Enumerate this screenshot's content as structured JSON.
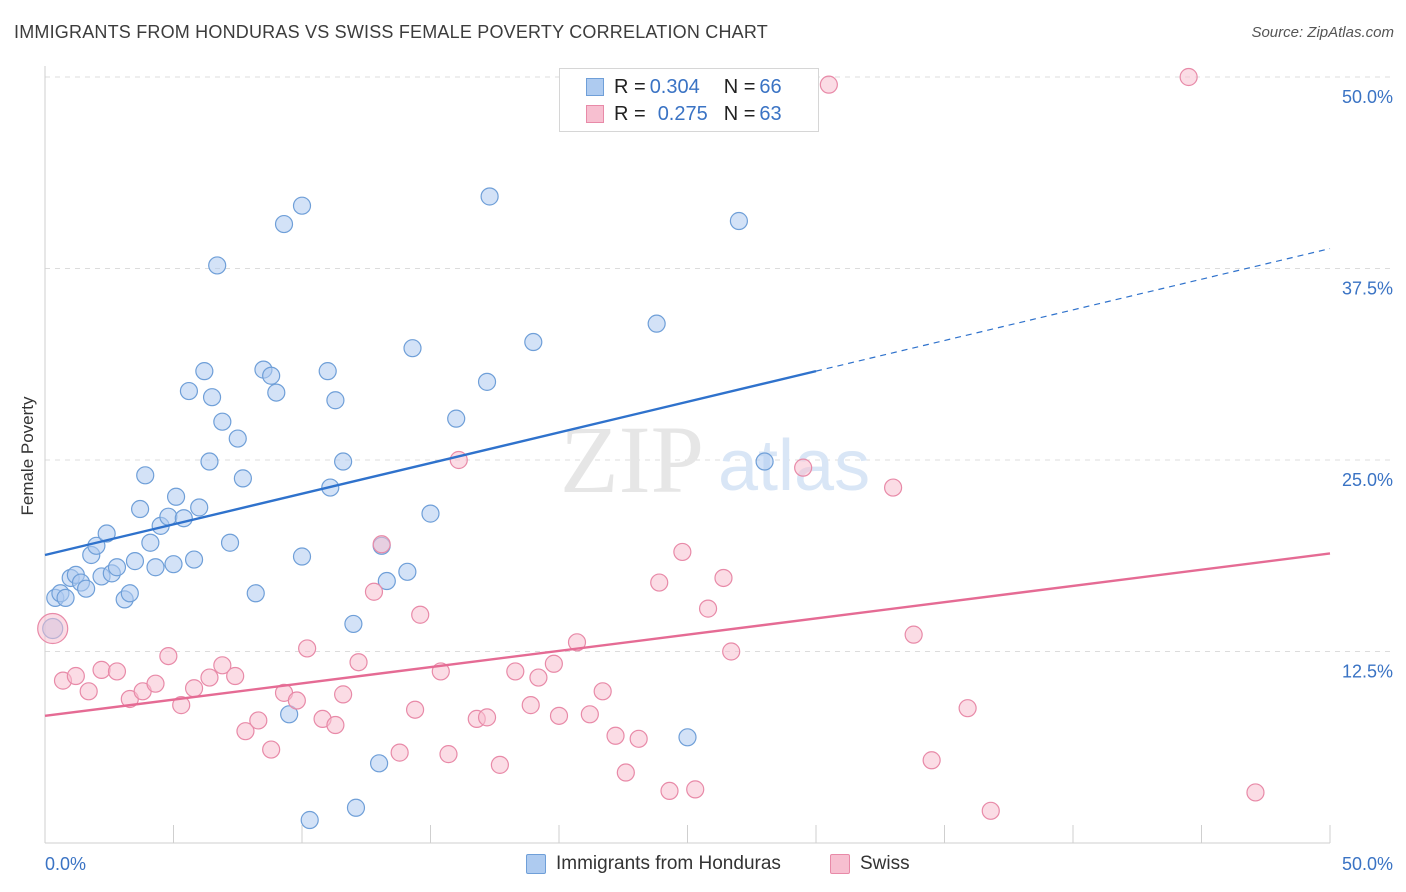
{
  "title": "IMMIGRANTS FROM HONDURAS VS SWISS FEMALE POVERTY CORRELATION CHART",
  "source": "Source: ZipAtlas.com",
  "watermark": {
    "zip": "ZIP",
    "atlas": "atlas"
  },
  "colors": {
    "blue_fill": "#aecbf0",
    "blue_stroke": "#6f9fd8",
    "blue_line": "#2f72cc",
    "pink_fill": "#f7bfd0",
    "pink_stroke": "#e88aa8",
    "pink_line": "#e56b94",
    "grid": "#dcdcdc",
    "axis_label": "#3a73c4"
  },
  "legend_top": [
    {
      "r_label": "R = ",
      "r_value": "0.304",
      "n_label": "N = ",
      "n_value": "66"
    },
    {
      "r_label": "R = ",
      "r_value": "0.275",
      "n_label": "N = ",
      "n_value": "63"
    }
  ],
  "chart_data": {
    "type": "scatter",
    "title": "IMMIGRANTS FROM HONDURAS VS SWISS FEMALE POVERTY CORRELATION CHART",
    "xlabel": "",
    "ylabel": "Female Poverty",
    "xlim": [
      0,
      50
    ],
    "ylim": [
      0,
      50
    ],
    "x_tick_labels": [
      "0.0%",
      "50.0%"
    ],
    "y_tick_values": [
      12.5,
      25.0,
      37.5,
      50.0
    ],
    "y_tick_labels": [
      "12.5%",
      "25.0%",
      "37.5%",
      "50.0%"
    ],
    "grid": true,
    "legend_position": "bottom",
    "series": [
      {
        "name": "Immigrants from Honduras",
        "r": 0.304,
        "n": 66,
        "trend": {
          "x": [
            0,
            30
          ],
          "y": [
            18.8,
            30.8
          ],
          "dashed_to_x": 50,
          "dashed_to_y": 38.8
        },
        "points": [
          [
            0.3,
            14.0
          ],
          [
            0.4,
            16.0
          ],
          [
            0.6,
            16.3
          ],
          [
            0.8,
            16.0
          ],
          [
            1.0,
            17.3
          ],
          [
            1.2,
            17.5
          ],
          [
            1.4,
            17.0
          ],
          [
            1.6,
            16.6
          ],
          [
            1.8,
            18.8
          ],
          [
            2.0,
            19.4
          ],
          [
            2.2,
            17.4
          ],
          [
            2.4,
            20.2
          ],
          [
            2.6,
            17.6
          ],
          [
            2.8,
            18.0
          ],
          [
            3.1,
            15.9
          ],
          [
            3.3,
            16.3
          ],
          [
            3.5,
            18.4
          ],
          [
            3.7,
            21.8
          ],
          [
            3.9,
            24.0
          ],
          [
            4.1,
            19.6
          ],
          [
            4.3,
            18.0
          ],
          [
            4.5,
            20.7
          ],
          [
            4.8,
            21.3
          ],
          [
            5.0,
            18.2
          ],
          [
            5.1,
            22.6
          ],
          [
            5.4,
            21.2
          ],
          [
            5.6,
            29.5
          ],
          [
            5.8,
            18.5
          ],
          [
            6.0,
            21.9
          ],
          [
            6.2,
            30.8
          ],
          [
            6.4,
            24.9
          ],
          [
            6.5,
            29.1
          ],
          [
            6.7,
            37.7
          ],
          [
            6.9,
            27.5
          ],
          [
            7.2,
            19.6
          ],
          [
            7.5,
            26.4
          ],
          [
            7.7,
            23.8
          ],
          [
            8.2,
            16.3
          ],
          [
            8.5,
            30.9
          ],
          [
            8.8,
            30.5
          ],
          [
            9.0,
            29.4
          ],
          [
            9.3,
            40.4
          ],
          [
            9.5,
            8.4
          ],
          [
            10.0,
            41.6
          ],
          [
            10.0,
            18.7
          ],
          [
            10.3,
            1.5
          ],
          [
            11.0,
            30.8
          ],
          [
            11.1,
            23.2
          ],
          [
            11.3,
            28.9
          ],
          [
            11.6,
            24.9
          ],
          [
            12.0,
            14.3
          ],
          [
            12.1,
            2.3
          ],
          [
            13.0,
            5.2
          ],
          [
            13.1,
            19.4
          ],
          [
            13.3,
            17.1
          ],
          [
            14.1,
            17.7
          ],
          [
            14.3,
            32.3
          ],
          [
            15.0,
            21.5
          ],
          [
            16.0,
            27.7
          ],
          [
            17.2,
            30.1
          ],
          [
            17.3,
            42.2
          ],
          [
            19.0,
            32.7
          ],
          [
            23.8,
            33.9
          ],
          [
            25.0,
            6.9
          ],
          [
            27.0,
            40.6
          ],
          [
            28.0,
            24.9
          ]
        ]
      },
      {
        "name": "Swiss",
        "r": 0.275,
        "n": 63,
        "trend": {
          "x": [
            0,
            50
          ],
          "y": [
            8.3,
            18.9
          ]
        },
        "points": [
          [
            0.3,
            14.0
          ],
          [
            0.7,
            10.6
          ],
          [
            1.2,
            10.9
          ],
          [
            1.7,
            9.9
          ],
          [
            2.2,
            11.3
          ],
          [
            2.8,
            11.2
          ],
          [
            3.3,
            9.4
          ],
          [
            3.8,
            9.9
          ],
          [
            4.3,
            10.4
          ],
          [
            4.8,
            12.2
          ],
          [
            5.3,
            9.0
          ],
          [
            5.8,
            10.1
          ],
          [
            6.4,
            10.8
          ],
          [
            6.9,
            11.6
          ],
          [
            7.4,
            10.9
          ],
          [
            7.8,
            7.3
          ],
          [
            8.3,
            8.0
          ],
          [
            8.8,
            6.1
          ],
          [
            9.3,
            9.8
          ],
          [
            9.8,
            9.3
          ],
          [
            10.2,
            12.7
          ],
          [
            10.8,
            8.1
          ],
          [
            11.3,
            7.7
          ],
          [
            11.6,
            9.7
          ],
          [
            12.2,
            11.8
          ],
          [
            12.8,
            16.4
          ],
          [
            13.1,
            19.5
          ],
          [
            13.8,
            5.9
          ],
          [
            14.4,
            8.7
          ],
          [
            14.6,
            14.9
          ],
          [
            15.4,
            11.2
          ],
          [
            15.7,
            5.8
          ],
          [
            16.1,
            25.0
          ],
          [
            16.8,
            8.1
          ],
          [
            17.2,
            8.2
          ],
          [
            17.7,
            5.1
          ],
          [
            18.3,
            11.2
          ],
          [
            18.9,
            9.0
          ],
          [
            19.2,
            10.8
          ],
          [
            19.8,
            11.7
          ],
          [
            20.0,
            8.3
          ],
          [
            20.7,
            13.1
          ],
          [
            21.2,
            8.4
          ],
          [
            21.7,
            9.9
          ],
          [
            22.2,
            7.0
          ],
          [
            22.6,
            4.6
          ],
          [
            23.1,
            6.8
          ],
          [
            23.9,
            17.0
          ],
          [
            24.3,
            3.4
          ],
          [
            24.8,
            19.0
          ],
          [
            25.3,
            3.5
          ],
          [
            25.8,
            15.3
          ],
          [
            26.4,
            17.3
          ],
          [
            26.7,
            12.5
          ],
          [
            29.5,
            24.5
          ],
          [
            30.5,
            49.5
          ],
          [
            33.0,
            23.2
          ],
          [
            33.8,
            13.6
          ],
          [
            34.5,
            5.4
          ],
          [
            35.9,
            8.8
          ],
          [
            36.8,
            2.1
          ],
          [
            44.5,
            50.0
          ],
          [
            47.1,
            3.3
          ]
        ]
      }
    ]
  }
}
